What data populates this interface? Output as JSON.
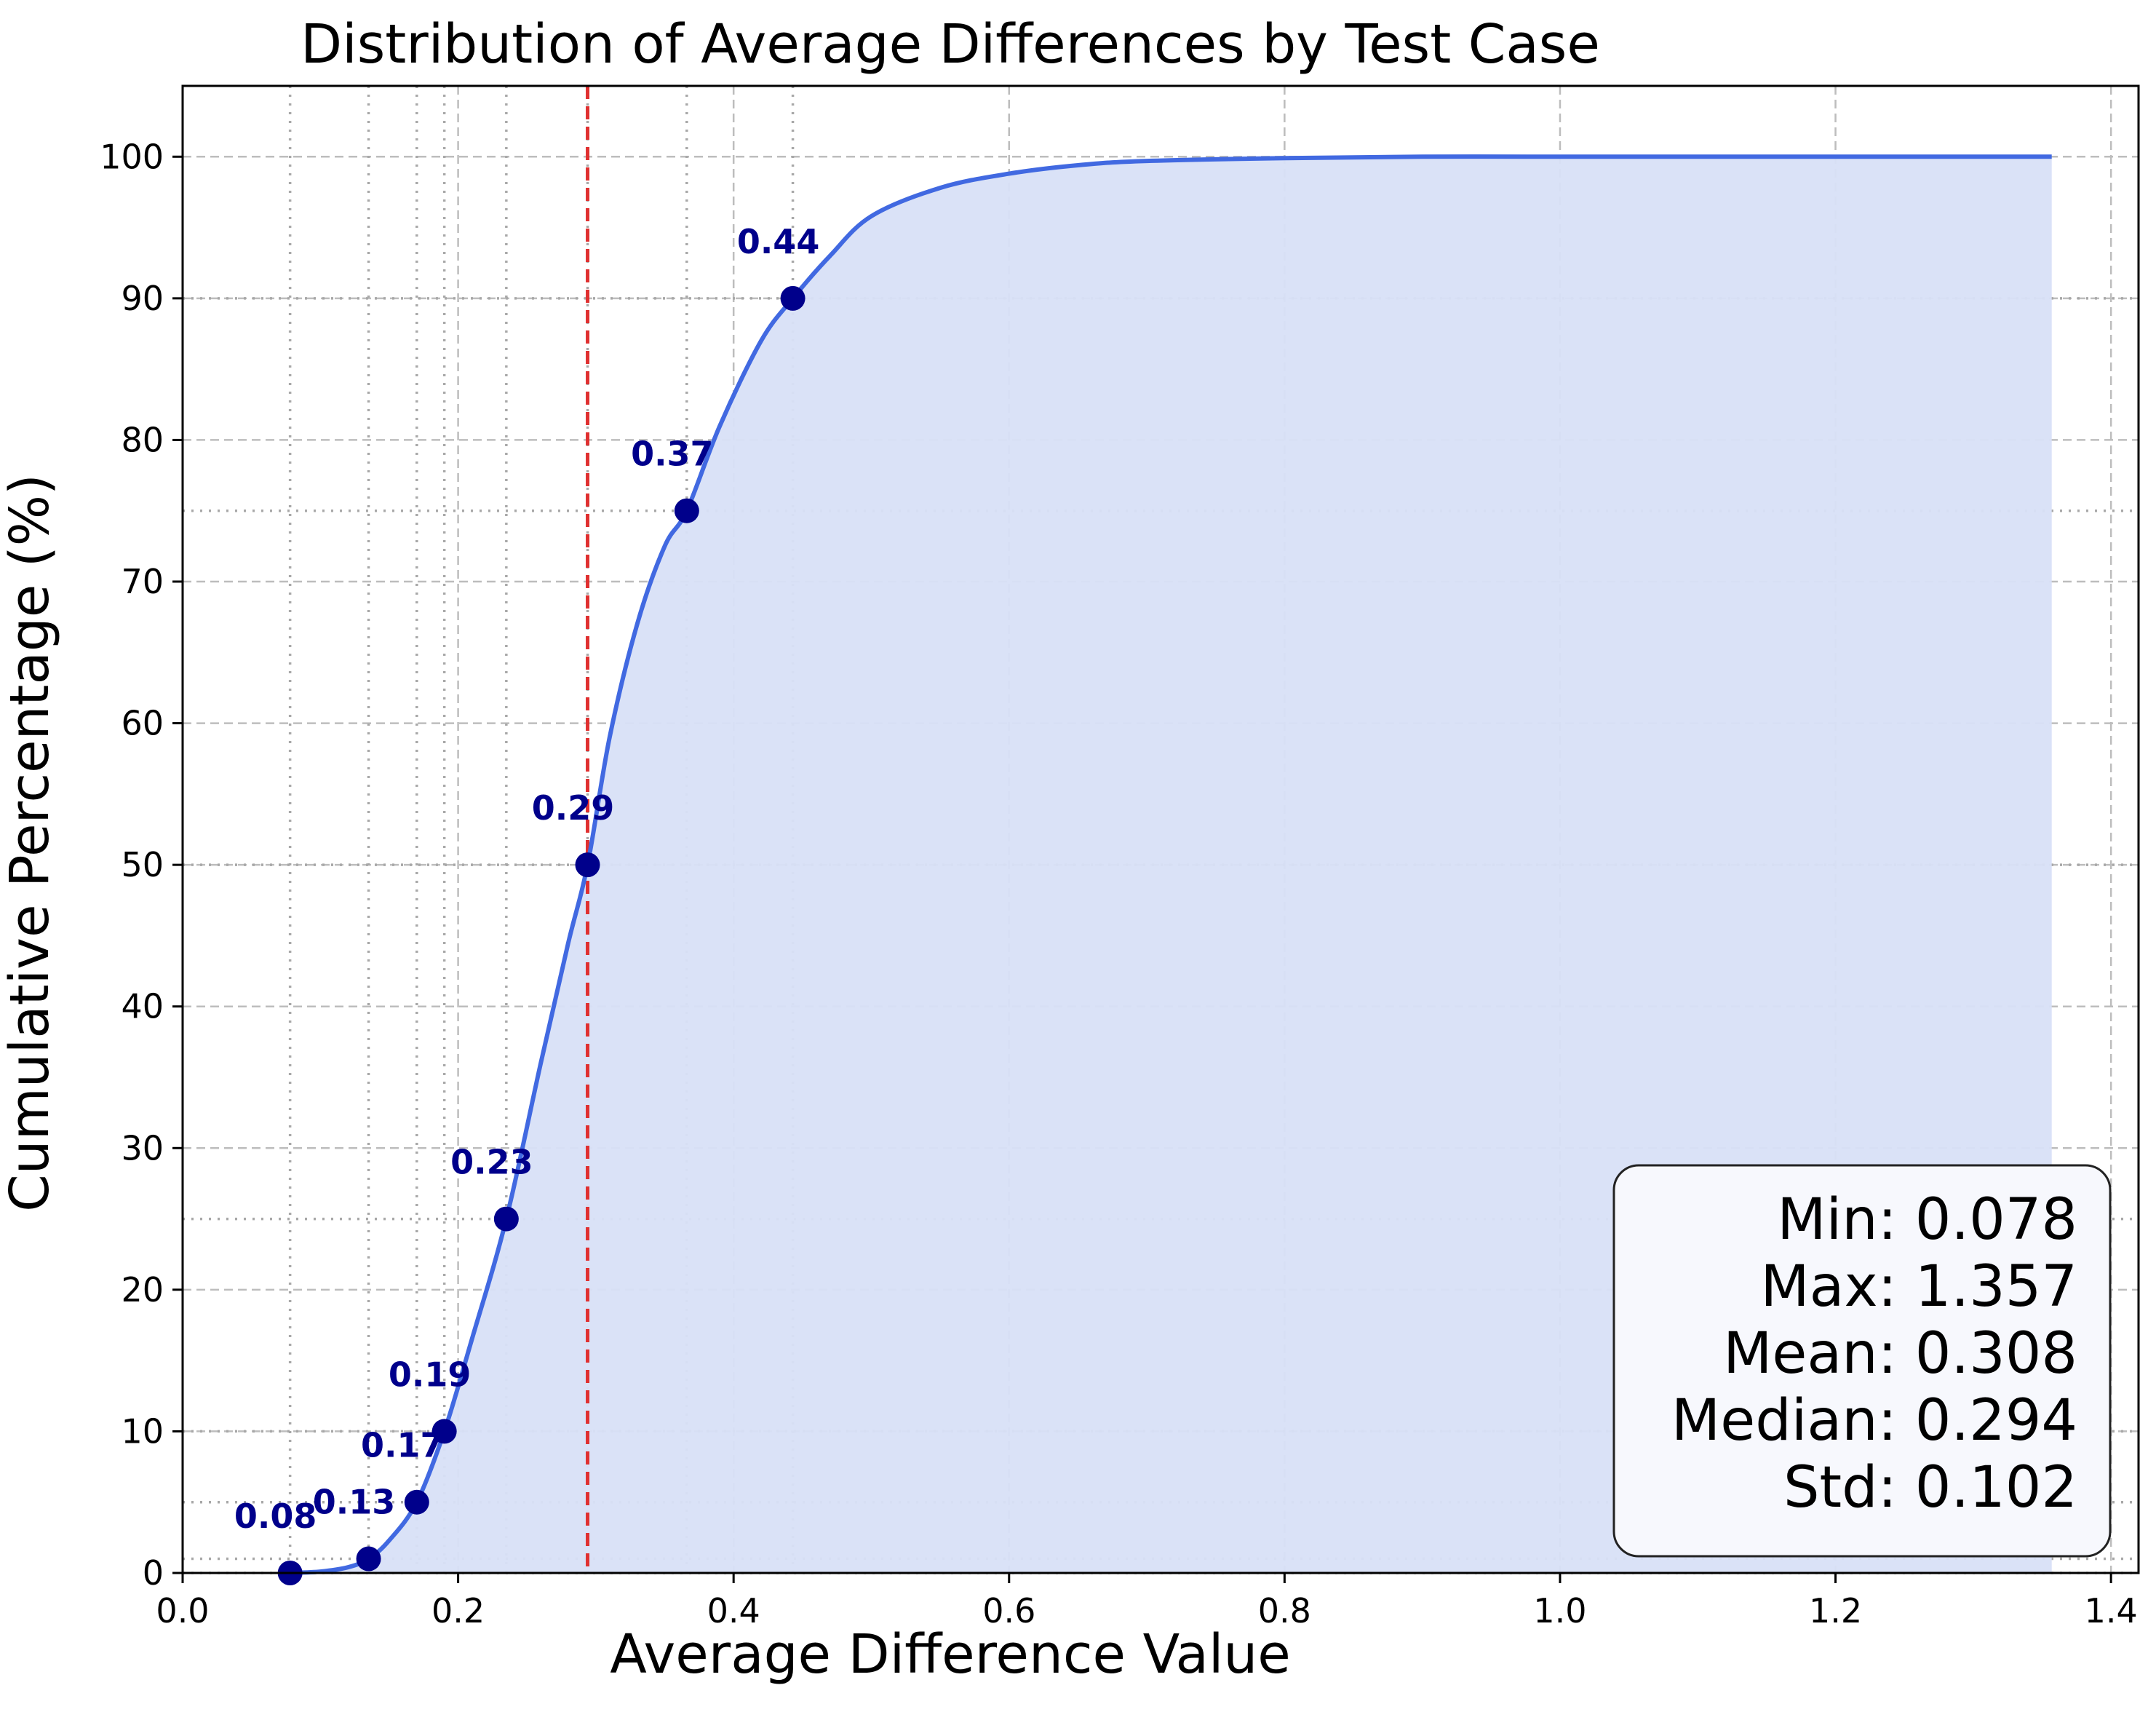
{
  "chart_data": {
    "type": "line",
    "title": "Distribution of Average Differences by Test Case",
    "xlabel": "Average Difference Value",
    "ylabel": "Cumulative Percentage (%)",
    "xlim": [
      0.0,
      1.42
    ],
    "ylim": [
      0,
      105
    ],
    "x_ticks": [
      0.0,
      0.2,
      0.4,
      0.6,
      0.8,
      1.0,
      1.2,
      1.4
    ],
    "x_tick_labels": [
      "0.0",
      "0.2",
      "0.4",
      "0.6",
      "0.8",
      "1.0",
      "1.2",
      "1.4"
    ],
    "y_ticks": [
      0,
      10,
      20,
      30,
      40,
      50,
      60,
      70,
      80,
      90,
      100
    ],
    "y_tick_labels": [
      "0",
      "10",
      "20",
      "30",
      "40",
      "50",
      "60",
      "70",
      "80",
      "90",
      "100"
    ],
    "grid": true,
    "curve_color": "#4169e1",
    "fill_color": "#d8e0f7",
    "marker_color": "#00008b",
    "median_line_color": "#e03030",
    "series": [
      {
        "x": [
          0.078,
          0.1,
          0.12,
          0.135,
          0.15,
          0.17,
          0.19,
          0.21,
          0.235,
          0.26,
          0.28,
          0.294,
          0.31,
          0.33,
          0.35,
          0.366,
          0.39,
          0.42,
          0.443,
          0.47,
          0.5,
          0.55,
          0.6,
          0.65,
          0.7,
          0.8,
          0.9,
          1.0,
          1.1,
          1.2,
          1.3,
          1.357
        ],
        "y": [
          0,
          0.1,
          0.4,
          1,
          2.3,
          5,
          10,
          16.5,
          25,
          36,
          44.5,
          50,
          59,
          67,
          72.5,
          75,
          81,
          87,
          90,
          93,
          95.8,
          97.8,
          98.8,
          99.4,
          99.7,
          99.9,
          100,
          100,
          100,
          100,
          100,
          100
        ]
      }
    ],
    "percentile_points": [
      {
        "x": 0.078,
        "y": 0,
        "label": "0.08"
      },
      {
        "x": 0.135,
        "y": 1,
        "label": "0.13"
      },
      {
        "x": 0.17,
        "y": 5,
        "label": "0.17"
      },
      {
        "x": 0.19,
        "y": 10,
        "label": "0.19"
      },
      {
        "x": 0.235,
        "y": 25,
        "label": "0.23"
      },
      {
        "x": 0.294,
        "y": 50,
        "label": "0.29"
      },
      {
        "x": 0.366,
        "y": 75,
        "label": "0.37"
      },
      {
        "x": 0.443,
        "y": 90,
        "label": "0.44"
      }
    ],
    "median": 0.294,
    "stats_box": {
      "lines": [
        "Min: 0.078",
        "Max: 1.357",
        "Mean: 0.308",
        "Median: 0.294",
        "Std: 0.102"
      ],
      "placement": "bottom-right"
    }
  }
}
